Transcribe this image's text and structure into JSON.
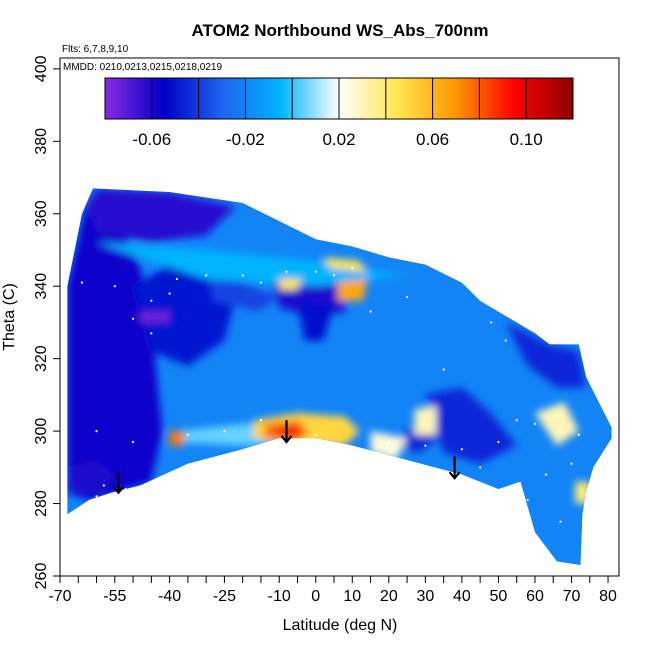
{
  "chart_data": {
    "type": "heatmap",
    "title": "ATOM2 Northbound WS_Abs_700nm",
    "annotations": [
      "Flts: 6,7,8,9,10",
      "MMDD: 0210,0213,0215,0218,0219"
    ],
    "xlabel": "Latitude (deg N)",
    "ylabel": "Theta (C)",
    "xlim": [
      -70,
      83
    ],
    "ylim": [
      260,
      403
    ],
    "x_ticks": [
      -70,
      -55,
      -40,
      -25,
      -10,
      0,
      10,
      20,
      30,
      40,
      50,
      60,
      70,
      80
    ],
    "x_tick_labels": [
      "-70",
      "-55",
      "-40",
      "-25",
      "-10",
      "0",
      "10",
      "20",
      "30",
      "40",
      "50",
      "60",
      "70",
      "80"
    ],
    "x_minor_ticks": [
      -65,
      -60,
      -50,
      -45,
      -35,
      -30,
      -20,
      -15,
      -5,
      5,
      15,
      25,
      35,
      45,
      55,
      65,
      75
    ],
    "y_ticks": [
      260,
      280,
      300,
      320,
      340,
      360,
      380,
      400
    ],
    "y_tick_labels": [
      "260",
      "280",
      "300",
      "320",
      "340",
      "360",
      "380",
      "400"
    ],
    "colorbar": {
      "range": [
        -0.08,
        0.12
      ],
      "ticks": [
        -0.06,
        -0.02,
        0.02,
        0.06,
        0.1
      ],
      "tick_labels": [
        "-0.06",
        "-0.02",
        "0.02",
        "0.06",
        "0.10"
      ],
      "colors": [
        "#8a2be2",
        "#0000c8",
        "#1e64f0",
        "#00b4ff",
        "#ffffff",
        "#ffe650",
        "#ff9600",
        "#ff0000",
        "#8b0000"
      ]
    },
    "outline": [
      [
        -68,
        277
      ],
      [
        -68,
        340
      ],
      [
        -64,
        360
      ],
      [
        -61,
        367
      ],
      [
        -40,
        366
      ],
      [
        -20,
        363
      ],
      [
        0,
        353
      ],
      [
        10,
        351
      ],
      [
        20,
        348
      ],
      [
        30,
        346
      ],
      [
        40,
        341
      ],
      [
        45,
        336
      ],
      [
        50,
        333
      ],
      [
        55,
        330
      ],
      [
        60,
        327
      ],
      [
        64,
        324
      ],
      [
        72,
        324
      ],
      [
        74,
        315
      ],
      [
        81,
        301
      ],
      [
        81,
        298
      ],
      [
        76,
        290
      ],
      [
        74,
        283
      ],
      [
        73,
        277
      ],
      [
        72.5,
        263
      ],
      [
        66,
        264
      ],
      [
        60,
        272
      ],
      [
        56,
        286
      ],
      [
        50,
        284
      ],
      [
        40,
        288
      ],
      [
        25,
        292
      ],
      [
        10,
        296
      ],
      [
        0,
        298
      ],
      [
        -10,
        298
      ],
      [
        -20,
        295
      ],
      [
        -35,
        291
      ],
      [
        -48,
        285
      ],
      [
        -56,
        283
      ],
      [
        -62,
        281
      ],
      [
        -65,
        279
      ]
    ],
    "background_value": -0.02,
    "regions": [
      {
        "polygon": [
          [
            -68,
            283
          ],
          [
            -68,
            340
          ],
          [
            -63,
            362
          ],
          [
            -55,
            360
          ],
          [
            -48,
            345
          ],
          [
            -44,
            320
          ],
          [
            -42,
            300
          ],
          [
            -45,
            286
          ],
          [
            -55,
            283
          ],
          [
            -62,
            281
          ]
        ],
        "value": -0.058
      },
      {
        "polygon": [
          [
            -63,
            362
          ],
          [
            -60,
            367
          ],
          [
            -40,
            366
          ],
          [
            -22,
            362
          ],
          [
            -30,
            354
          ],
          [
            -45,
            352
          ],
          [
            -60,
            355
          ]
        ],
        "value": -0.062
      },
      {
        "polygon": [
          [
            -50,
            340
          ],
          [
            -40,
            346
          ],
          [
            -30,
            345
          ],
          [
            -22,
            337
          ],
          [
            -25,
            325
          ],
          [
            -35,
            318
          ],
          [
            -45,
            322
          ]
        ],
        "value": -0.05
      },
      {
        "polygon": [
          [
            -12,
            342
          ],
          [
            0,
            343
          ],
          [
            10,
            341
          ],
          [
            8,
            333
          ],
          [
            -2,
            332
          ],
          [
            -10,
            334
          ]
        ],
        "value": -0.06
      },
      {
        "polygon": [
          [
            -48,
            330
          ],
          [
            -40,
            330
          ],
          [
            -40,
            333
          ],
          [
            -48,
            333
          ]
        ],
        "value": -0.075
      },
      {
        "polygon": [
          [
            -5,
            336
          ],
          [
            5,
            335
          ],
          [
            2,
            325
          ],
          [
            -3,
            325
          ]
        ],
        "value": -0.052
      },
      {
        "polygon": [
          [
            30,
            310
          ],
          [
            40,
            312
          ],
          [
            48,
            305
          ],
          [
            55,
            296
          ],
          [
            45,
            291
          ],
          [
            35,
            294
          ]
        ],
        "value": -0.045
      },
      {
        "polygon": [
          [
            52,
            330
          ],
          [
            64,
            324
          ],
          [
            72,
            322
          ],
          [
            74,
            312
          ],
          [
            66,
            312
          ],
          [
            58,
            318
          ]
        ],
        "value": -0.045
      },
      {
        "polygon": [
          [
            -68,
            290
          ],
          [
            -60,
            292
          ],
          [
            -55,
            288
          ],
          [
            -58,
            283
          ],
          [
            -68,
            283
          ]
        ],
        "value": -0.06
      },
      {
        "polygon": [
          [
            -30,
            344
          ],
          [
            -20,
            341
          ],
          [
            -10,
            337
          ],
          [
            -16,
            333
          ],
          [
            -28,
            336
          ]
        ],
        "value": -0.038
      },
      {
        "polygon": [
          [
            24,
            300
          ],
          [
            30,
            302
          ],
          [
            34,
            298
          ],
          [
            28,
            294
          ],
          [
            22,
            296
          ]
        ],
        "value": -0.045
      },
      {
        "polygon": [
          [
            -60,
            352
          ],
          [
            -30,
            350
          ],
          [
            0,
            347
          ],
          [
            25,
            343
          ],
          [
            0,
            340
          ],
          [
            -30,
            342
          ]
        ],
        "value": -0.005
      },
      {
        "polygon": [
          [
            -38,
            300
          ],
          [
            -20,
            302
          ],
          [
            0,
            302
          ],
          [
            12,
            300
          ],
          [
            0,
            297
          ],
          [
            -20,
            296
          ],
          [
            -38,
            297
          ]
        ],
        "value": 0.005
      },
      {
        "polygon": [
          [
            15,
            300
          ],
          [
            25,
            298
          ],
          [
            22,
            292
          ],
          [
            15,
            294
          ]
        ],
        "value": 0.025
      },
      {
        "polygon": [
          [
            27,
            306
          ],
          [
            33,
            307
          ],
          [
            33,
            299
          ],
          [
            27,
            299
          ]
        ],
        "value": 0.03
      },
      {
        "polygon": [
          [
            60,
            305
          ],
          [
            68,
            308
          ],
          [
            72,
            300
          ],
          [
            66,
            296
          ]
        ],
        "value": 0.03
      },
      {
        "polygon": [
          [
            2,
            348
          ],
          [
            12,
            347
          ],
          [
            14,
            344
          ],
          [
            4,
            345
          ]
        ],
        "value": 0.045
      },
      {
        "polygon": [
          [
            -10,
            342
          ],
          [
            -4,
            342
          ],
          [
            -5,
            339
          ],
          [
            -10,
            339
          ]
        ],
        "value": 0.045
      },
      {
        "polygon": [
          [
            6,
            341
          ],
          [
            14,
            342
          ],
          [
            13,
            336
          ],
          [
            6,
            336
          ]
        ],
        "value": 0.065
      },
      {
        "polygon": [
          [
            -17,
            303
          ],
          [
            -5,
            305
          ],
          [
            8,
            304
          ],
          [
            12,
            300
          ],
          [
            8,
            296
          ],
          [
            -5,
            296
          ],
          [
            -17,
            298
          ]
        ],
        "value": 0.05
      },
      {
        "polygon": [
          [
            -14,
            302
          ],
          [
            -5,
            303
          ],
          [
            -2,
            300
          ],
          [
            -5,
            297
          ],
          [
            -14,
            298
          ]
        ],
        "value": 0.078
      },
      {
        "polygon": [
          [
            -10,
            301
          ],
          [
            -4,
            301
          ],
          [
            -4,
            299
          ],
          [
            -10,
            299
          ]
        ],
        "value": 0.1
      },
      {
        "polygon": [
          [
            71,
            286
          ],
          [
            75,
            286
          ],
          [
            75,
            280
          ],
          [
            71,
            280
          ]
        ],
        "value": 0.04
      },
      {
        "polygon": [
          [
            -40,
            300
          ],
          [
            -36,
            300
          ],
          [
            -36,
            296
          ],
          [
            -40,
            296
          ]
        ],
        "value": 0.075
      }
    ],
    "arrows": [
      {
        "lat": -54,
        "theta_top": 289,
        "theta_bottom": 283
      },
      {
        "lat": -8,
        "theta_top": 303,
        "theta_bottom": 297
      },
      {
        "lat": 38,
        "theta_top": 293,
        "theta_bottom": 287
      }
    ],
    "sample_points": [
      [
        -64,
        341
      ],
      [
        -55,
        340
      ],
      [
        -45,
        336
      ],
      [
        -40,
        338
      ],
      [
        -38,
        342
      ],
      [
        -30,
        343
      ],
      [
        -20,
        343
      ],
      [
        -15,
        341
      ],
      [
        -8,
        344
      ],
      [
        0,
        344
      ],
      [
        5,
        343
      ],
      [
        10,
        345
      ],
      [
        20,
        349
      ],
      [
        25,
        337
      ],
      [
        15,
        333
      ],
      [
        -50,
        331
      ],
      [
        -45,
        327
      ],
      [
        -60,
        300
      ],
      [
        -50,
        297
      ],
      [
        -35,
        299
      ],
      [
        -25,
        300
      ],
      [
        -15,
        303
      ],
      [
        0,
        299
      ],
      [
        20,
        297
      ],
      [
        30,
        296
      ],
      [
        40,
        295
      ],
      [
        50,
        297
      ],
      [
        60,
        302
      ],
      [
        63,
        288
      ],
      [
        70,
        291
      ],
      [
        72,
        299
      ],
      [
        48,
        330
      ],
      [
        52,
        325
      ],
      [
        55,
        303
      ],
      [
        35,
        317
      ],
      [
        -60,
        282
      ],
      [
        -58,
        285
      ],
      [
        -52,
        284
      ],
      [
        45,
        290
      ],
      [
        58,
        281
      ],
      [
        67,
        275
      ]
    ]
  }
}
